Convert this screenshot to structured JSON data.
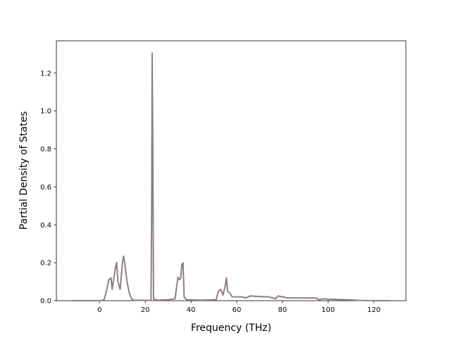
{
  "chart_data": {
    "type": "line",
    "x_label": "Frequency (THz)",
    "y_label": "Partial Density of States",
    "x": [
      -12,
      0,
      2,
      3,
      4,
      5,
      5.5,
      6,
      7,
      7.5,
      8,
      9,
      10,
      10.5,
      11,
      12,
      13,
      14,
      15,
      20,
      22.5,
      22.8,
      23,
      23.3,
      23.6,
      25,
      30,
      33,
      33.8,
      34.3,
      35,
      35.5,
      36,
      36.5,
      37,
      38,
      45,
      51,
      52,
      53,
      54,
      55,
      55.5,
      56,
      57,
      58,
      60,
      62,
      64,
      66,
      70,
      74,
      77,
      78,
      80,
      82,
      95,
      96,
      98,
      100,
      110,
      115,
      127
    ],
    "series": [
      {
        "color": "#8e7f80",
        "values": [
          0,
          0,
          0.005,
          0.05,
          0.11,
          0.12,
          0.06,
          0.1,
          0.18,
          0.2,
          0.1,
          0.06,
          0.2,
          0.235,
          0.2,
          0.1,
          0.04,
          0.01,
          0.003,
          0.002,
          0.002,
          0.5,
          1.305,
          0.8,
          0.01,
          0.003,
          0.005,
          0.01,
          0.08,
          0.125,
          0.11,
          0.12,
          0.19,
          0.2,
          0.02,
          0.005,
          0.003,
          0.005,
          0.05,
          0.06,
          0.03,
          0.08,
          0.12,
          0.05,
          0.04,
          0.02,
          0.02,
          0.02,
          0.015,
          0.025,
          0.022,
          0.02,
          0.01,
          0.025,
          0.02,
          0.015,
          0.014,
          0.005,
          0.01,
          0.008,
          0.004,
          0.001,
          0
        ]
      }
    ],
    "xlim": [
      -18.9,
      134.0
    ],
    "xticks": [
      0,
      20,
      40,
      60,
      80,
      100,
      120
    ],
    "ylim": [
      0,
      1.37
    ],
    "yticks": [
      {
        "value": 0,
        "label": "0.0"
      },
      0.2,
      0.4,
      0.6,
      0.8,
      {
        "value": 1,
        "label": "1.0"
      },
      1.2
    ]
  }
}
